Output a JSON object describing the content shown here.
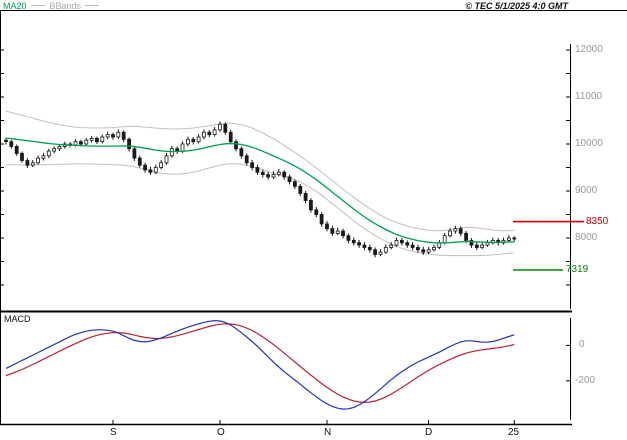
{
  "header": {
    "copyright": "© TEC 5/1/2025 4:0 GMT"
  },
  "legend": {
    "ma20": "MA20",
    "bbands": "BBands",
    "macd": "MACD"
  },
  "colors": {
    "ma20": "#00a050",
    "bbands": "#c0c0c0",
    "candle": "#1a1a1a",
    "macd_line": "#2233bb",
    "signal_line": "#bb2233",
    "axis_text": "#999999",
    "level_red": "#cc0000",
    "level_green": "#008800"
  },
  "chart_data": {
    "type": "candlestick",
    "title": "",
    "legend_entries": [
      "MA20",
      "BBands"
    ],
    "grid": false,
    "price_axis": {
      "tick_labels": [
        "12000",
        "11000",
        "10000",
        "9000",
        "8000"
      ],
      "tick_values": [
        12000,
        11000,
        10000,
        9000,
        8000
      ],
      "minor_step": 500,
      "ylim": [
        6447,
        12851
      ]
    },
    "levels": [
      {
        "label": "8350",
        "value": 8350,
        "color": "#cc0000"
      },
      {
        "label": "7319",
        "value": 7319,
        "color": "#008800"
      }
    ],
    "x_axis": {
      "tick_labels": [
        "S",
        "O",
        "N",
        "D",
        "25"
      ],
      "tick_bars": [
        20,
        40,
        60,
        79,
        95
      ]
    },
    "candles": [
      [
        10080,
        10130,
        9990,
        10050
      ],
      [
        10050,
        10090,
        9900,
        9950
      ],
      [
        9950,
        9990,
        9750,
        9800
      ],
      [
        9800,
        9840,
        9600,
        9650
      ],
      [
        9650,
        9700,
        9490,
        9550
      ],
      [
        9550,
        9660,
        9510,
        9600
      ],
      [
        9600,
        9760,
        9560,
        9700
      ],
      [
        9700,
        9810,
        9650,
        9750
      ],
      [
        9750,
        9900,
        9700,
        9850
      ],
      [
        9850,
        9950,
        9800,
        9900
      ],
      [
        9900,
        10000,
        9850,
        9950
      ],
      [
        9950,
        10050,
        9900,
        10000
      ],
      [
        10000,
        10040,
        9930,
        9980
      ],
      [
        9980,
        10100,
        9940,
        10050
      ],
      [
        10050,
        10090,
        9950,
        10000
      ],
      [
        10000,
        10130,
        9960,
        10080
      ],
      [
        10080,
        10170,
        10030,
        10120
      ],
      [
        10120,
        10160,
        10000,
        10050
      ],
      [
        10050,
        10200,
        10010,
        10150
      ],
      [
        10150,
        10260,
        10100,
        10200
      ],
      [
        10200,
        10240,
        10090,
        10150
      ],
      [
        10150,
        10310,
        10110,
        10250
      ],
      [
        10250,
        10290,
        10040,
        10100
      ],
      [
        10100,
        10140,
        9840,
        9900
      ],
      [
        9900,
        9940,
        9640,
        9700
      ],
      [
        9700,
        9750,
        9500,
        9550
      ],
      [
        9550,
        9600,
        9390,
        9450
      ],
      [
        9450,
        9520,
        9340,
        9400
      ],
      [
        9400,
        9560,
        9360,
        9500
      ],
      [
        9500,
        9660,
        9460,
        9600
      ],
      [
        9600,
        9810,
        9560,
        9750
      ],
      [
        9750,
        9960,
        9710,
        9900
      ],
      [
        9900,
        9950,
        9790,
        9850
      ],
      [
        9850,
        10060,
        9810,
        10000
      ],
      [
        10000,
        10160,
        9950,
        10100
      ],
      [
        10100,
        10150,
        9990,
        10050
      ],
      [
        10050,
        10210,
        10010,
        10150
      ],
      [
        10150,
        10310,
        10100,
        10250
      ],
      [
        10250,
        10300,
        10140,
        10200
      ],
      [
        10200,
        10360,
        10160,
        10300
      ],
      [
        10300,
        10480,
        10260,
        10420
      ],
      [
        10420,
        10460,
        10190,
        10250
      ],
      [
        10250,
        10300,
        9990,
        10050
      ],
      [
        10050,
        10100,
        9840,
        9900
      ],
      [
        9900,
        9950,
        9690,
        9750
      ],
      [
        9750,
        9800,
        9540,
        9600
      ],
      [
        9600,
        9660,
        9440,
        9500
      ],
      [
        9500,
        9560,
        9340,
        9400
      ],
      [
        9400,
        9460,
        9290,
        9350
      ],
      [
        9350,
        9410,
        9240,
        9300
      ],
      [
        9300,
        9420,
        9260,
        9350
      ],
      [
        9350,
        9470,
        9310,
        9400
      ],
      [
        9400,
        9440,
        9240,
        9300
      ],
      [
        9300,
        9350,
        9140,
        9200
      ],
      [
        9200,
        9250,
        9040,
        9100
      ],
      [
        9100,
        9150,
        8890,
        8950
      ],
      [
        8950,
        9000,
        8740,
        8800
      ],
      [
        8800,
        8850,
        8540,
        8600
      ],
      [
        8600,
        8660,
        8440,
        8500
      ],
      [
        8500,
        8550,
        8240,
        8300
      ],
      [
        8300,
        8360,
        8140,
        8200
      ],
      [
        8200,
        8260,
        8040,
        8100
      ],
      [
        8100,
        8220,
        8060,
        8150
      ],
      [
        8150,
        8200,
        7990,
        8050
      ],
      [
        8050,
        8100,
        7890,
        7950
      ],
      [
        7950,
        8010,
        7840,
        7900
      ],
      [
        7900,
        7960,
        7790,
        7850
      ],
      [
        7850,
        7910,
        7740,
        7800
      ],
      [
        7800,
        7860,
        7690,
        7750
      ],
      [
        7750,
        7800,
        7590,
        7650
      ],
      [
        7650,
        7760,
        7610,
        7700
      ],
      [
        7700,
        7860,
        7660,
        7800
      ],
      [
        7800,
        7910,
        7760,
        7850
      ],
      [
        7850,
        8010,
        7810,
        7950
      ],
      [
        7950,
        8000,
        7840,
        7900
      ],
      [
        7900,
        7950,
        7790,
        7850
      ],
      [
        7850,
        7910,
        7740,
        7800
      ],
      [
        7800,
        7860,
        7690,
        7750
      ],
      [
        7750,
        7810,
        7640,
        7700
      ],
      [
        7700,
        7810,
        7660,
        7750
      ],
      [
        7750,
        7860,
        7710,
        7800
      ],
      [
        7800,
        7960,
        7760,
        7900
      ],
      [
        7900,
        8110,
        7860,
        8050
      ],
      [
        8050,
        8210,
        8010,
        8150
      ],
      [
        8150,
        8260,
        8090,
        8200
      ],
      [
        8200,
        8250,
        8040,
        8100
      ],
      [
        8100,
        8150,
        7890,
        7950
      ],
      [
        7950,
        8000,
        7790,
        7850
      ],
      [
        7850,
        7910,
        7740,
        7800
      ],
      [
        7800,
        7910,
        7760,
        7850
      ],
      [
        7850,
        7960,
        7810,
        7900
      ],
      [
        7900,
        8010,
        7860,
        7950
      ],
      [
        7950,
        8000,
        7840,
        7900
      ],
      [
        7900,
        8010,
        7860,
        7950
      ],
      [
        7950,
        8060,
        7910,
        8000
      ],
      [
        8000,
        8040,
        7920,
        7980
      ]
    ],
    "ma20": [
      10130,
      10115,
      10100,
      10085,
      10070,
      10055,
      10040,
      10025,
      10010,
      10000,
      9990,
      9980,
      9975,
      9970,
      9965,
      9960,
      9958,
      9956,
      9955,
      9955,
      9956,
      9958,
      9960,
      9955,
      9945,
      9930,
      9910,
      9890,
      9870,
      9855,
      9845,
      9840,
      9840,
      9845,
      9855,
      9870,
      9890,
      9915,
      9940,
      9965,
      9990,
      10005,
      10010,
      10005,
      9990,
      9965,
      9930,
      9890,
      9845,
      9795,
      9745,
      9695,
      9645,
      9590,
      9530,
      9465,
      9395,
      9320,
      9240,
      9155,
      9065,
      8975,
      8885,
      8795,
      8705,
      8615,
      8530,
      8450,
      8375,
      8305,
      8240,
      8180,
      8125,
      8075,
      8035,
      8000,
      7970,
      7945,
      7925,
      7910,
      7900,
      7895,
      7895,
      7900,
      7910,
      7920,
      7925,
      7925,
      7920,
      7915,
      7910,
      7905,
      7905,
      7910,
      7915,
      7920
    ],
    "bb_upper": [
      10700,
      10670,
      10640,
      10610,
      10580,
      10550,
      10520,
      10490,
      10460,
      10435,
      10410,
      10390,
      10375,
      10360,
      10350,
      10345,
      10340,
      10340,
      10340,
      10345,
      10350,
      10360,
      10370,
      10375,
      10375,
      10370,
      10360,
      10350,
      10340,
      10330,
      10325,
      10320,
      10320,
      10325,
      10330,
      10340,
      10355,
      10370,
      10390,
      10410,
      10430,
      10440,
      10440,
      10430,
      10410,
      10380,
      10340,
      10290,
      10235,
      10175,
      10110,
      10040,
      9970,
      9895,
      9820,
      9740,
      9660,
      9575,
      9490,
      9400,
      9310,
      9220,
      9130,
      9040,
      8950,
      8865,
      8780,
      8700,
      8625,
      8555,
      8490,
      8430,
      8375,
      8330,
      8290,
      8255,
      8225,
      8200,
      8180,
      8165,
      8155,
      8155,
      8160,
      8175,
      8195,
      8215,
      8225,
      8225,
      8215,
      8200,
      8185,
      8170,
      8160,
      8155,
      8155,
      8160
    ],
    "bb_lower": [
      9560,
      9560,
      9555,
      9555,
      9555,
      9560,
      9560,
      9560,
      9560,
      9565,
      9570,
      9570,
      9575,
      9580,
      9580,
      9575,
      9575,
      9570,
      9570,
      9565,
      9560,
      9555,
      9550,
      9535,
      9515,
      9490,
      9460,
      9430,
      9400,
      9380,
      9365,
      9360,
      9360,
      9365,
      9380,
      9400,
      9425,
      9460,
      9490,
      9520,
      9550,
      9570,
      9580,
      9580,
      9570,
      9550,
      9520,
      9490,
      9455,
      9415,
      9380,
      9350,
      9320,
      9285,
      9240,
      9190,
      9130,
      9065,
      8990,
      8910,
      8820,
      8730,
      8640,
      8550,
      8460,
      8365,
      8280,
      8200,
      8125,
      8055,
      7990,
      7930,
      7875,
      7820,
      7780,
      7745,
      7715,
      7690,
      7670,
      7655,
      7645,
      7635,
      7630,
      7625,
      7625,
      7625,
      7625,
      7625,
      7625,
      7630,
      7635,
      7640,
      7650,
      7665,
      7675,
      7680
    ],
    "macd_panel": {
      "title": "MACD",
      "tick_labels": [
        "0",
        "-200"
      ],
      "tick_values": [
        0,
        -200
      ],
      "ylim": [
        -444,
        183
      ],
      "macd": [
        -130,
        -115,
        -100,
        -85,
        -70,
        -55,
        -40,
        -25,
        -10,
        5,
        20,
        35,
        50,
        62,
        72,
        80,
        85,
        88,
        88,
        85,
        80,
        70,
        55,
        40,
        28,
        22,
        20,
        24,
        32,
        42,
        55,
        68,
        80,
        92,
        103,
        113,
        122,
        130,
        136,
        140,
        138,
        130,
        115,
        95,
        72,
        48,
        22,
        -5,
        -35,
        -65,
        -95,
        -122,
        -148,
        -172,
        -196,
        -220,
        -244,
        -268,
        -290,
        -312,
        -330,
        -345,
        -355,
        -360,
        -358,
        -350,
        -336,
        -318,
        -296,
        -272,
        -246,
        -220,
        -194,
        -170,
        -148,
        -128,
        -110,
        -94,
        -80,
        -66,
        -52,
        -38,
        -22,
        -6,
        8,
        20,
        26,
        26,
        22,
        18,
        18,
        22,
        30,
        40,
        50,
        60
      ],
      "signal": [
        -170,
        -160,
        -148,
        -136,
        -122,
        -108,
        -93,
        -78,
        -63,
        -48,
        -33,
        -18,
        -4,
        10,
        24,
        37,
        48,
        57,
        64,
        69,
        72,
        72,
        70,
        65,
        58,
        51,
        45,
        41,
        39,
        40,
        43,
        48,
        55,
        63,
        72,
        81,
        90,
        99,
        107,
        114,
        119,
        122,
        121,
        117,
        109,
        98,
        84,
        67,
        48,
        27,
        5,
        -19,
        -44,
        -69,
        -94,
        -119,
        -144,
        -168,
        -192,
        -215,
        -237,
        -257,
        -275,
        -291,
        -304,
        -314,
        -320,
        -322,
        -320,
        -314,
        -304,
        -291,
        -275,
        -257,
        -238,
        -218,
        -198,
        -178,
        -159,
        -141,
        -124,
        -108,
        -93,
        -79,
        -66,
        -54,
        -44,
        -36,
        -30,
        -25,
        -21,
        -17,
        -13,
        -8,
        -2,
        5
      ]
    }
  }
}
